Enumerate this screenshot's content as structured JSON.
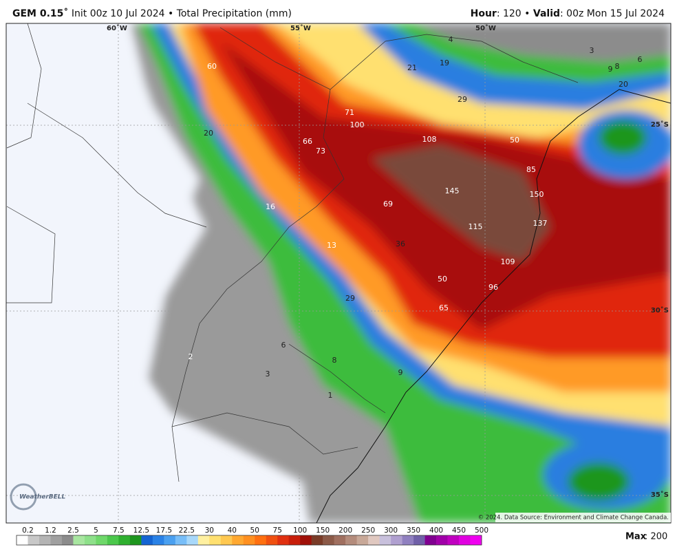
{
  "header": {
    "model": "GEM 0.15˚",
    "init": " Init 00z 10 Jul 2024 • Total Precipitation (mm)",
    "hour_label": "Hour",
    "hour_value": ": 120 • ",
    "valid_label": "Valid",
    "valid_value": ": 00z Mon 15 Jul 2024"
  },
  "map": {
    "grid_labels": [
      "60˚W",
      "55˚W",
      "50˚W",
      "25˚S",
      "30˚S",
      "35˚S"
    ],
    "point_labels": [
      "60",
      "71",
      "100",
      "66",
      "73",
      "108",
      "20",
      "16",
      "13",
      "69",
      "145",
      "150",
      "137",
      "115",
      "85",
      "50",
      "36",
      "109",
      "50",
      "96",
      "29",
      "65",
      "21",
      "19",
      "29",
      "3",
      "9",
      "8",
      "6",
      "20",
      "2",
      "6",
      "8",
      "3",
      "9",
      "1",
      "4"
    ],
    "credit": "© 2024. Data Source: Environment and Climate Change Canada.",
    "logo": "WeatherBELL"
  },
  "colorbar": {
    "labels": [
      "0.2",
      "1.2",
      "2.5",
      "5",
      "7.5",
      "12.5",
      "17.5",
      "22.5",
      "30",
      "40",
      "50",
      "75",
      "100",
      "150",
      "200",
      "250",
      "300",
      "350",
      "400",
      "450",
      "500"
    ],
    "colors": [
      "#ffffff",
      "#c8c8c8",
      "#b4b4b4",
      "#a0a0a0",
      "#8c8c8c",
      "#a8e6a0",
      "#8ee08a",
      "#6fd86a",
      "#4cc84c",
      "#2fb02f",
      "#1e961e",
      "#1464d2",
      "#2a82e6",
      "#4aa0f0",
      "#78bef8",
      "#a8d8fa",
      "#fff0a0",
      "#ffe070",
      "#ffc850",
      "#ffa830",
      "#ff9020",
      "#ff7010",
      "#f05010",
      "#e03010",
      "#c81e0a",
      "#a01008",
      "#7a3c28",
      "#8c5a48",
      "#a07060",
      "#b48c7c",
      "#c8a898",
      "#e0c8c0",
      "#c8c0dc",
      "#b0a0d0",
      "#9080c0",
      "#7060a8",
      "#800090",
      "#a000a8",
      "#c000c0",
      "#e000e0",
      "#f000f0"
    ]
  },
  "max": {
    "label": "Max",
    "value": ": 200"
  }
}
